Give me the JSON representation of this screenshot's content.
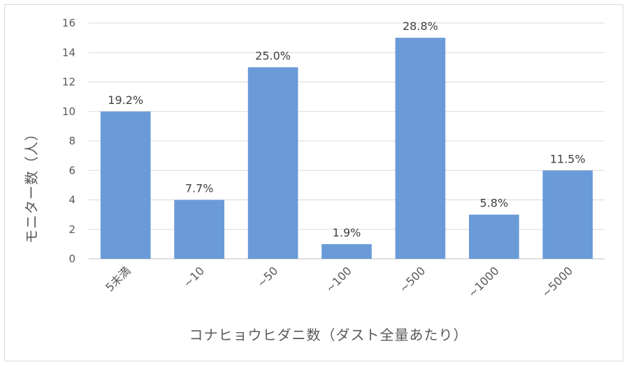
{
  "chart_data": {
    "type": "bar",
    "categories": [
      "5未満",
      "~10",
      "~50",
      "~100",
      "~500",
      "~1000",
      "~5000"
    ],
    "values": [
      10,
      4,
      13,
      1,
      15,
      3,
      6
    ],
    "data_labels": [
      "19.2%",
      "7.7%",
      "25.0%",
      "1.9%",
      "28.8%",
      "5.8%",
      "11.5%"
    ],
    "xlabel": "コナヒョウヒダニ数（ダスト全量あたり）",
    "ylabel": "モニター数（人）",
    "ylim": [
      0,
      16
    ],
    "yticks": [
      "0",
      "2",
      "4",
      "6",
      "8",
      "10",
      "12",
      "14",
      "16"
    ],
    "grid": true,
    "legend": "none",
    "colors": {
      "bar": "#6a9bd8",
      "grid": "#d9d9d9",
      "axis": "#bfbfbf"
    }
  }
}
